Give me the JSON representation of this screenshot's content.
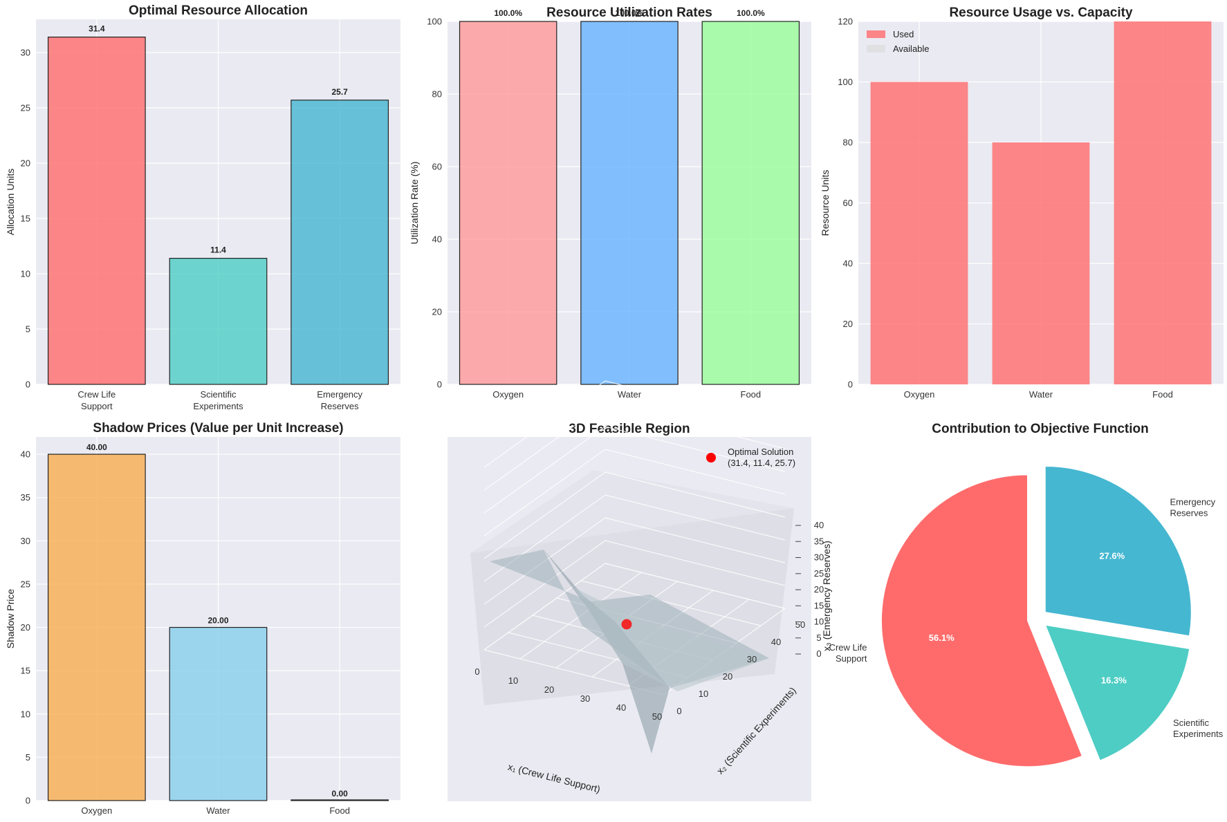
{
  "chart_data": [
    {
      "type": "bar",
      "title": "Optimal Resource Allocation",
      "categories": [
        "Crew Life\nSupport",
        "Scientific\nExperiments",
        "Emergency\nReserves"
      ],
      "values": [
        31.4,
        11.4,
        25.7
      ],
      "value_labels": [
        "31.4",
        "11.4",
        "25.7"
      ],
      "colors": [
        "#ff6b6b",
        "#4ecdc4",
        "#45b7d1"
      ],
      "ylabel": "Allocation Units",
      "ylim": [
        0,
        33
      ],
      "yticks": [
        0,
        5,
        10,
        15,
        20,
        25,
        30
      ]
    },
    {
      "type": "bar",
      "title": "Resource Utilization Rates",
      "categories": [
        "Oxygen",
        "Water",
        "Food"
      ],
      "values": [
        100,
        100,
        100
      ],
      "value_labels": [
        "100.0%",
        "100.0%",
        "100.0%"
      ],
      "colors": [
        "#ff9999",
        "#66b3ff",
        "#99ff99"
      ],
      "ylabel": "Utilization Rate (%)",
      "ylim": [
        0,
        100
      ],
      "yticks": [
        0,
        20,
        40,
        60,
        80,
        100
      ]
    },
    {
      "type": "bar",
      "title": "Resource Usage vs. Capacity",
      "categories": [
        "Oxygen",
        "Water",
        "Food"
      ],
      "series": [
        {
          "name": "Used",
          "values": [
            100,
            80,
            120
          ],
          "color": "#ff6b6b"
        },
        {
          "name": "Available",
          "values": [
            0,
            0,
            0
          ],
          "color": "#d9d9d9"
        }
      ],
      "ylabel": "Resource Units",
      "ylim": [
        0,
        120
      ],
      "yticks": [
        0,
        20,
        40,
        60,
        80,
        100,
        120
      ],
      "legend": "top-left"
    },
    {
      "type": "bar",
      "title": "Shadow Prices (Value per Unit Increase)",
      "categories": [
        "Oxygen",
        "Water",
        "Food"
      ],
      "values": [
        40,
        20,
        0
      ],
      "value_labels": [
        "40.00",
        "20.00",
        "0.00"
      ],
      "colors": [
        "#f8ae4f",
        "#87ceeb",
        "#dda0dd"
      ],
      "ylabel": "Shadow Price",
      "ylim": [
        0,
        42
      ],
      "yticks": [
        0,
        5,
        10,
        15,
        20,
        25,
        30,
        35,
        40
      ]
    },
    {
      "type": "scatter",
      "title": "3D Feasible Region",
      "xlabel": "x₁ (Crew Life Support)",
      "ylabel": "x₂ (Scientific Experiments)",
      "zlabel": "x₃ (Emergency Reserves)",
      "xticks": [
        0,
        10,
        20,
        30,
        40,
        50
      ],
      "yticks": [
        0,
        10,
        20,
        30,
        40,
        50
      ],
      "zticks": [
        0,
        5,
        10,
        15,
        20,
        25,
        30,
        35,
        40
      ],
      "point": {
        "x": 31.4,
        "y": 11.4,
        "z": 25.7,
        "color": "#ff0000"
      },
      "legend_label": "Optimal Solution\n(31.4, 11.4, 25.7)",
      "surface_color": "#9fb0b8"
    },
    {
      "type": "pie",
      "title": "Contribution to Objective Function",
      "labels": [
        "Crew Life\nSupport",
        "Scientific\nExperiments",
        "Emergency\nReserves"
      ],
      "values": [
        56.1,
        16.3,
        27.6
      ],
      "pct_labels": [
        "56.1%",
        "16.3%",
        "27.6%"
      ],
      "colors": [
        "#ff6b6b",
        "#4ecdc4",
        "#45b7d1"
      ]
    }
  ]
}
